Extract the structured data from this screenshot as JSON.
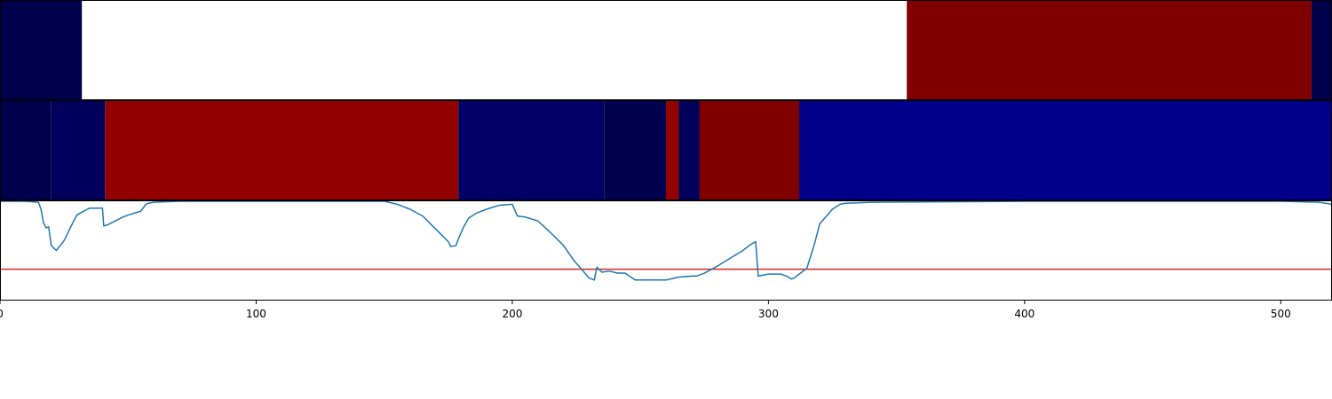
{
  "chart_data": [
    {
      "type": "heatmap",
      "x_domain": [
        0,
        520
      ],
      "colors": {
        "white": "#ffffff",
        "darkred": "#800000",
        "red": "#930000",
        "deepnavy": "#00004c",
        "navy": "#00005c",
        "midnavy": "#000066",
        "blue": "#00008a"
      },
      "segments": [
        {
          "start": 0,
          "end": 32,
          "color": "deepnavy"
        },
        {
          "start": 32,
          "end": 354,
          "color": "white"
        },
        {
          "start": 354,
          "end": 512,
          "color": "darkred"
        },
        {
          "start": 512,
          "end": 520,
          "color": "deepnavy"
        }
      ]
    },
    {
      "type": "heatmap",
      "x_domain": [
        0,
        520
      ],
      "colors": {
        "white": "#ffffff",
        "darkred": "#800000",
        "red": "#930000",
        "deepnavy": "#00004c",
        "navy": "#00005c",
        "midnavy": "#000066",
        "blue": "#00008a"
      },
      "segments": [
        {
          "start": 0,
          "end": 20,
          "color": "deepnavy"
        },
        {
          "start": 20,
          "end": 41,
          "color": "navy"
        },
        {
          "start": 41,
          "end": 179,
          "color": "red"
        },
        {
          "start": 179,
          "end": 236,
          "color": "midnavy"
        },
        {
          "start": 236,
          "end": 260,
          "color": "deepnavy"
        },
        {
          "start": 260,
          "end": 265,
          "color": "red"
        },
        {
          "start": 265,
          "end": 273,
          "color": "navy"
        },
        {
          "start": 273,
          "end": 312,
          "color": "darkred"
        },
        {
          "start": 312,
          "end": 520,
          "color": "blue"
        }
      ]
    },
    {
      "type": "line",
      "xlim": [
        0,
        520
      ],
      "ylim": [
        0,
        1
      ],
      "xticks": [
        0,
        100,
        200,
        300,
        400,
        500
      ],
      "threshold": {
        "y": 0.31,
        "color": "#d62728"
      },
      "series": [
        {
          "color": "#1f77b4",
          "x": [
            0,
            5,
            10,
            15,
            16,
            17,
            18,
            19,
            20,
            22,
            25,
            28,
            30,
            32,
            35,
            38,
            40,
            40.5,
            42,
            45,
            48,
            50,
            55,
            57,
            58,
            60,
            70,
            80,
            100,
            120,
            150,
            155,
            160,
            165,
            170,
            175,
            176,
            178,
            179,
            181,
            183,
            186,
            190,
            195,
            200,
            202,
            205,
            210,
            215,
            220,
            224,
            228,
            230,
            232,
            233,
            235,
            238,
            241,
            244,
            248,
            250,
            255,
            260,
            265,
            270,
            272,
            275,
            280,
            285,
            290,
            293,
            295,
            296,
            298,
            300,
            305,
            307,
            309,
            310,
            312,
            315,
            318,
            320,
            325,
            328,
            330,
            340,
            400,
            480,
            500,
            515,
            520
          ],
          "y": [
            1,
            1,
            1,
            0.99,
            0.92,
            0.78,
            0.73,
            0.74,
            0.55,
            0.5,
            0.6,
            0.76,
            0.86,
            0.89,
            0.93,
            0.93,
            0.93,
            0.75,
            0.76,
            0.8,
            0.84,
            0.86,
            0.9,
            0.97,
            0.98,
            0.99,
            1,
            1,
            1,
            1,
            1,
            0.97,
            0.92,
            0.85,
            0.72,
            0.59,
            0.54,
            0.55,
            0.62,
            0.74,
            0.83,
            0.88,
            0.92,
            0.96,
            0.97,
            0.85,
            0.84,
            0.8,
            0.68,
            0.55,
            0.4,
            0.28,
            0.22,
            0.2,
            0.33,
            0.28,
            0.29,
            0.27,
            0.27,
            0.2,
            0.2,
            0.2,
            0.2,
            0.23,
            0.24,
            0.24,
            0.27,
            0.34,
            0.42,
            0.5,
            0.56,
            0.59,
            0.24,
            0.25,
            0.26,
            0.26,
            0.24,
            0.21,
            0.22,
            0.26,
            0.32,
            0.57,
            0.77,
            0.92,
            0.97,
            0.98,
            0.99,
            1,
            1,
            1,
            0.99,
            0.97
          ]
        }
      ]
    }
  ]
}
